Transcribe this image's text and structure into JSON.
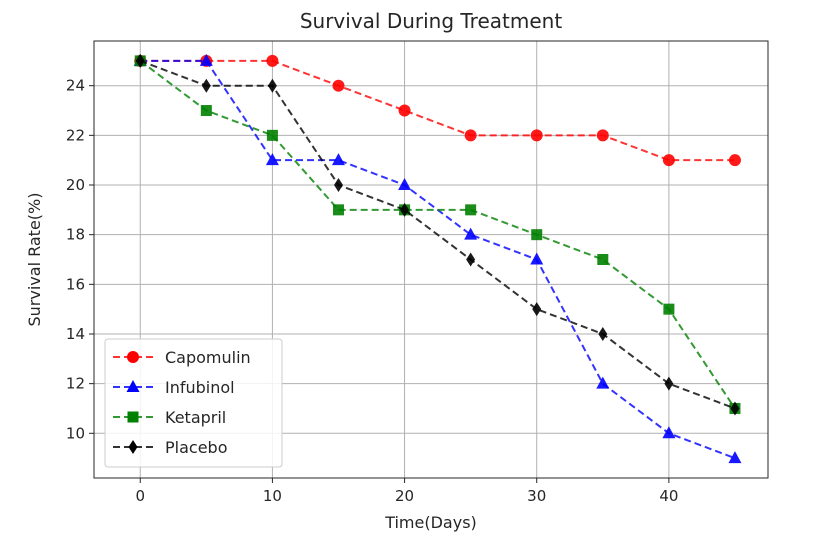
{
  "chart_data": {
    "type": "line",
    "title": "Survival During Treatment",
    "xlabel": "Time(Days)",
    "ylabel": "Survival Rate(%)",
    "x": [
      0,
      5,
      10,
      15,
      20,
      25,
      30,
      35,
      40,
      45
    ],
    "xlim": [
      -3.5,
      47.5
    ],
    "ylim": [
      8.2,
      25.8
    ],
    "xticks": [
      0,
      10,
      20,
      30,
      40
    ],
    "yticks": [
      10,
      12,
      14,
      16,
      18,
      20,
      22,
      24
    ],
    "grid": true,
    "legend_position": "lower-left",
    "series": [
      {
        "name": "Capomulin",
        "color": "#ff0000",
        "marker": "circle",
        "values": [
          25,
          25,
          25,
          24,
          23,
          22,
          22,
          22,
          21,
          21
        ]
      },
      {
        "name": "Infubinol",
        "color": "#0000ff",
        "marker": "triangle",
        "values": [
          25,
          25,
          21,
          21,
          20,
          18,
          17,
          12,
          10,
          9
        ]
      },
      {
        "name": "Ketapril",
        "color": "#008000",
        "marker": "square",
        "values": [
          25,
          23,
          22,
          19,
          19,
          19,
          18,
          17,
          15,
          11
        ]
      },
      {
        "name": "Placebo",
        "color": "#000000",
        "marker": "diamond",
        "values": [
          25,
          24,
          24,
          20,
          19,
          17,
          15,
          14,
          12,
          11
        ]
      }
    ]
  }
}
